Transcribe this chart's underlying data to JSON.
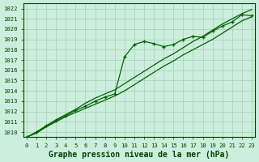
{
  "title": "Graphe pression niveau de la mer (hPa)",
  "x_values": [
    0,
    1,
    2,
    3,
    4,
    5,
    6,
    7,
    8,
    9,
    10,
    11,
    12,
    13,
    14,
    15,
    16,
    17,
    18,
    19,
    20,
    21,
    22,
    23
  ],
  "line_measured": [
    1009.5,
    1010.0,
    1010.6,
    1011.1,
    1011.6,
    1012.1,
    1012.5,
    1013.0,
    1013.4,
    1013.7,
    1017.3,
    1018.5,
    1018.8,
    1018.6,
    1018.3,
    1018.5,
    1019.0,
    1019.3,
    1019.2,
    1019.8,
    1020.3,
    1020.7,
    1021.4,
    1021.3
  ],
  "line_lower": [
    1009.5,
    1009.9,
    1010.5,
    1011.0,
    1011.5,
    1011.9,
    1012.3,
    1012.7,
    1013.1,
    1013.5,
    1014.0,
    1014.6,
    1015.2,
    1015.8,
    1016.4,
    1016.9,
    1017.5,
    1018.0,
    1018.5,
    1019.0,
    1019.6,
    1020.2,
    1020.8,
    1021.2
  ],
  "line_upper": [
    1009.5,
    1010.0,
    1010.6,
    1011.2,
    1011.7,
    1012.2,
    1012.8,
    1013.3,
    1013.7,
    1014.1,
    1014.7,
    1015.3,
    1015.9,
    1016.5,
    1017.1,
    1017.6,
    1018.2,
    1018.8,
    1019.3,
    1019.9,
    1020.5,
    1021.0,
    1021.5,
    1021.9
  ],
  "line_color": "#006400",
  "marker_color": "#006400",
  "bg_color": "#cceedd",
  "grid_color": "#aaccbb",
  "axis_color": "#004400",
  "text_color": "#004400",
  "ylim": [
    1009.5,
    1022.5
  ],
  "yticks": [
    1010,
    1011,
    1012,
    1013,
    1014,
    1015,
    1016,
    1017,
    1018,
    1019,
    1020,
    1021,
    1022
  ],
  "xlim": [
    -0.3,
    23.3
  ],
  "title_fontsize": 7.0,
  "tick_fontsize": 5.2
}
